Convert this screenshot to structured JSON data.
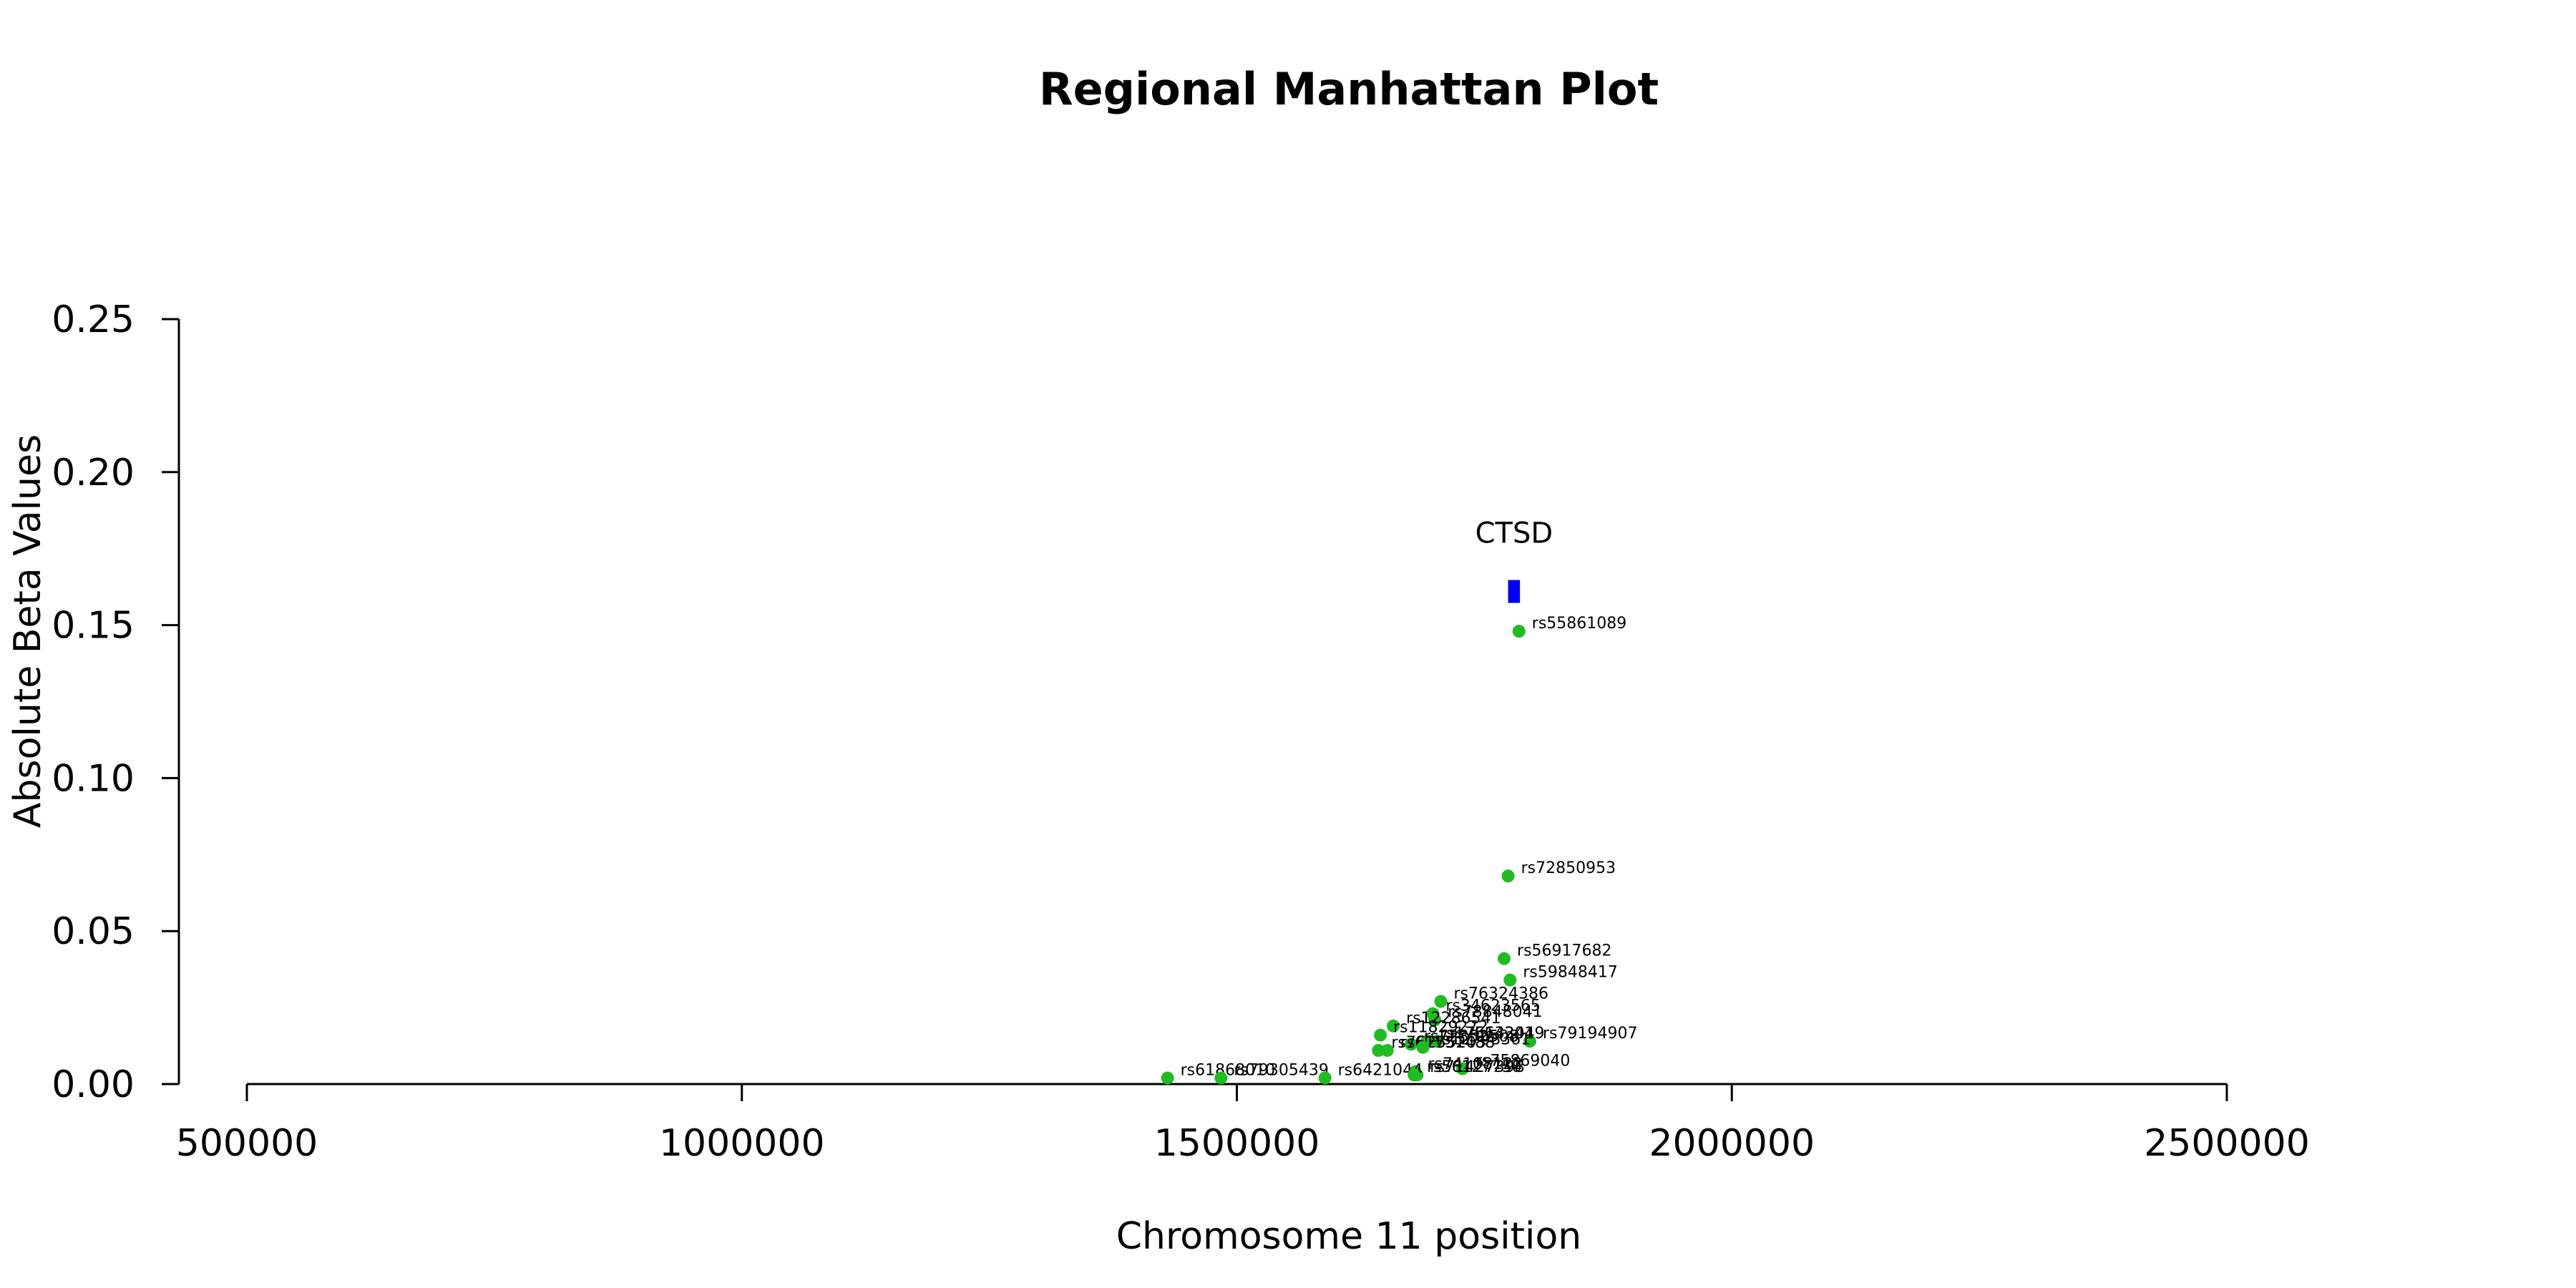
{
  "chart_data": {
    "type": "scatter",
    "title": "Regional Manhattan Plot",
    "xlabel": "Chromosome 11 position",
    "ylabel": "Absolute Beta Values",
    "xlim": [
      500000,
      2500000
    ],
    "ylim": [
      0,
      0.25
    ],
    "x_ticks": [
      500000,
      1000000,
      1500000,
      2000000,
      2500000
    ],
    "x_tick_labels": [
      "500000",
      "1000000",
      "1500000",
      "2000000",
      "2500000"
    ],
    "y_ticks": [
      0.0,
      0.05,
      0.1,
      0.15,
      0.2,
      0.25
    ],
    "y_tick_labels": [
      "0.00",
      "0.05",
      "0.10",
      "0.15",
      "0.20",
      "0.25"
    ],
    "grid": false,
    "point_color": "#22bb22",
    "gene_color": "#0000ee",
    "genes": [
      {
        "name": "CTSD",
        "start": 1774000,
        "end": 1786000,
        "y": 0.161
      }
    ],
    "points": [
      {
        "label": "rs55861089",
        "x": 1785000,
        "y": 0.148
      },
      {
        "label": "rs72850953",
        "x": 1774000,
        "y": 0.068
      },
      {
        "label": "rs56917682",
        "x": 1770000,
        "y": 0.041
      },
      {
        "label": "rs59848417",
        "x": 1776000,
        "y": 0.034
      },
      {
        "label": "rs76324386",
        "x": 1706000,
        "y": 0.027
      },
      {
        "label": "rs34623565",
        "x": 1698000,
        "y": 0.023
      },
      {
        "label": "rs78848041",
        "x": 1700000,
        "y": 0.021
      },
      {
        "label": "rs79194907",
        "x": 1796000,
        "y": 0.014
      },
      {
        "label": "rs12286541",
        "x": 1658000,
        "y": 0.019
      },
      {
        "label": "rs11829272",
        "x": 1645000,
        "y": 0.016
      },
      {
        "label": "rs75143419",
        "x": 1702000,
        "y": 0.014
      },
      {
        "label": "rs17663204",
        "x": 1692000,
        "y": 0.014
      },
      {
        "label": "rs72852508",
        "x": 1676000,
        "y": 0.013
      },
      {
        "label": "rs61751488",
        "x": 1652000,
        "y": 0.011
      },
      {
        "label": "rs76255205",
        "x": 1643000,
        "y": 0.011
      },
      {
        "label": "rs12798361",
        "x": 1688000,
        "y": 0.012
      },
      {
        "label": "rs75869040",
        "x": 1728000,
        "y": 0.005
      },
      {
        "label": "rs74108122",
        "x": 1680000,
        "y": 0.004
      },
      {
        "label": "rs71427398",
        "x": 1682000,
        "y": 0.003
      },
      {
        "label": "rs61868010",
        "x": 1430000,
        "y": 0.002
      },
      {
        "label": "rs79305439",
        "x": 1484000,
        "y": 0.002
      },
      {
        "label": "rs6421044",
        "x": 1589000,
        "y": 0.002
      },
      {
        "label": "rs56127750",
        "x": 1679000,
        "y": 0.003
      }
    ]
  }
}
